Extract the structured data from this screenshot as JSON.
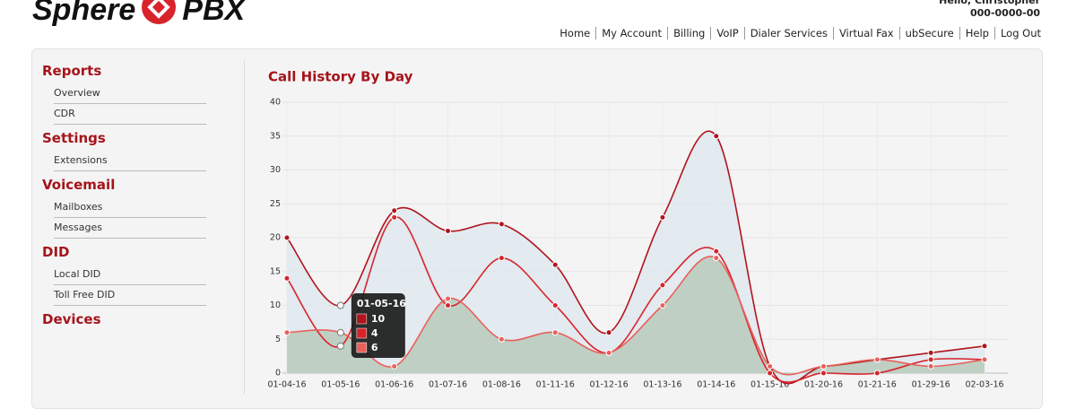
{
  "header": {
    "logo_left": "Sphere",
    "logo_right": "PBX",
    "greeting": "Hello, Christopher",
    "account": "000-0000-00",
    "nav": [
      "Home",
      "My Account",
      "Billing",
      "VoIP",
      "Dialer Services",
      "Virtual Fax",
      "ubSecure",
      "Help",
      "Log Out"
    ]
  },
  "sidebar": [
    {
      "title": "Reports",
      "items": [
        "Overview",
        "CDR"
      ]
    },
    {
      "title": "Settings",
      "items": [
        "Extensions"
      ]
    },
    {
      "title": "Voicemail",
      "items": [
        "Mailboxes",
        "Messages"
      ]
    },
    {
      "title": "DID",
      "items": [
        "Local DID",
        "Toll Free DID"
      ]
    },
    {
      "title": "Devices",
      "items": []
    }
  ],
  "chart_data": {
    "type": "line",
    "title": "Call History By Day",
    "categories": [
      "01-04-16",
      "01-05-16",
      "01-06-16",
      "01-07-16",
      "01-08-16",
      "01-11-16",
      "01-12-16",
      "01-13-16",
      "01-14-16",
      "01-15-16",
      "01-20-16",
      "01-21-16",
      "01-29-16",
      "02-03-16"
    ],
    "series": [
      {
        "color": "#b0141c",
        "fill": "#dfe7ee",
        "values": [
          20,
          10,
          24,
          21,
          22,
          16,
          6,
          23,
          35,
          1,
          1,
          2,
          3,
          4
        ]
      },
      {
        "color": "#d8232a",
        "values": [
          14,
          4,
          23,
          10,
          17,
          10,
          3,
          13,
          18,
          0,
          0,
          0,
          2,
          2
        ]
      },
      {
        "color": "#e8605a",
        "fill": "#b8cabc",
        "values": [
          6,
          6,
          1,
          11,
          5,
          6,
          3,
          10,
          17,
          1,
          1,
          2,
          1,
          2
        ]
      }
    ],
    "ylim": [
      0,
      40
    ],
    "yticks": [
      0,
      5,
      10,
      15,
      20,
      25,
      30,
      35,
      40
    ],
    "grid": true,
    "tooltip_index": 1
  }
}
